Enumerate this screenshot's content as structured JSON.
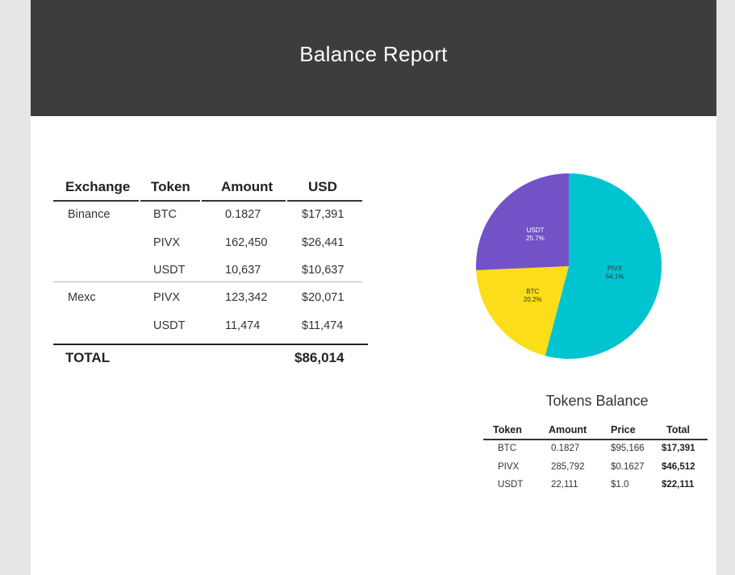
{
  "header": {
    "title": "Balance Report"
  },
  "balance_table": {
    "columns": [
      "Exchange",
      "Token",
      "Amount",
      "USD"
    ],
    "rows": [
      {
        "exchange": "Binance",
        "token": "BTC",
        "amount": "0.1827",
        "usd": "$17,391"
      },
      {
        "exchange": "",
        "token": "PIVX",
        "amount": "162,450",
        "usd": "$26,441"
      },
      {
        "exchange": "",
        "token": "USDT",
        "amount": "10,637",
        "usd": "$10,637"
      },
      {
        "exchange": "Mexc",
        "token": "PIVX",
        "amount": "123,342",
        "usd": "$20,071"
      },
      {
        "exchange": "",
        "token": "USDT",
        "amount": "11,474",
        "usd": "$11,474"
      }
    ],
    "total_label": "TOTAL",
    "total_value": "$86,014"
  },
  "chart_data": {
    "type": "pie",
    "slices": [
      {
        "label": "PIVX",
        "percent": "54.1%",
        "value": 54.1,
        "color": "#00c4d0"
      },
      {
        "label": "BTC",
        "percent": "20.2%",
        "value": 20.2,
        "color": "#fcdd19"
      },
      {
        "label": "USDT",
        "percent": "25.7%",
        "value": 25.7,
        "color": "#7352c7"
      }
    ]
  },
  "tokens_table": {
    "title": "Tokens Balance",
    "columns": [
      "Token",
      "Amount",
      "Price",
      "Total"
    ],
    "rows": [
      {
        "token": "BTC",
        "amount": "0.1827",
        "price": "$95,166",
        "total": "$17,391"
      },
      {
        "token": "PIVX",
        "amount": "285,792",
        "price": "$0.1627",
        "total": "$46,512"
      },
      {
        "token": "USDT",
        "amount": "22,111",
        "price": "$1.0",
        "total": "$22,111"
      }
    ]
  }
}
